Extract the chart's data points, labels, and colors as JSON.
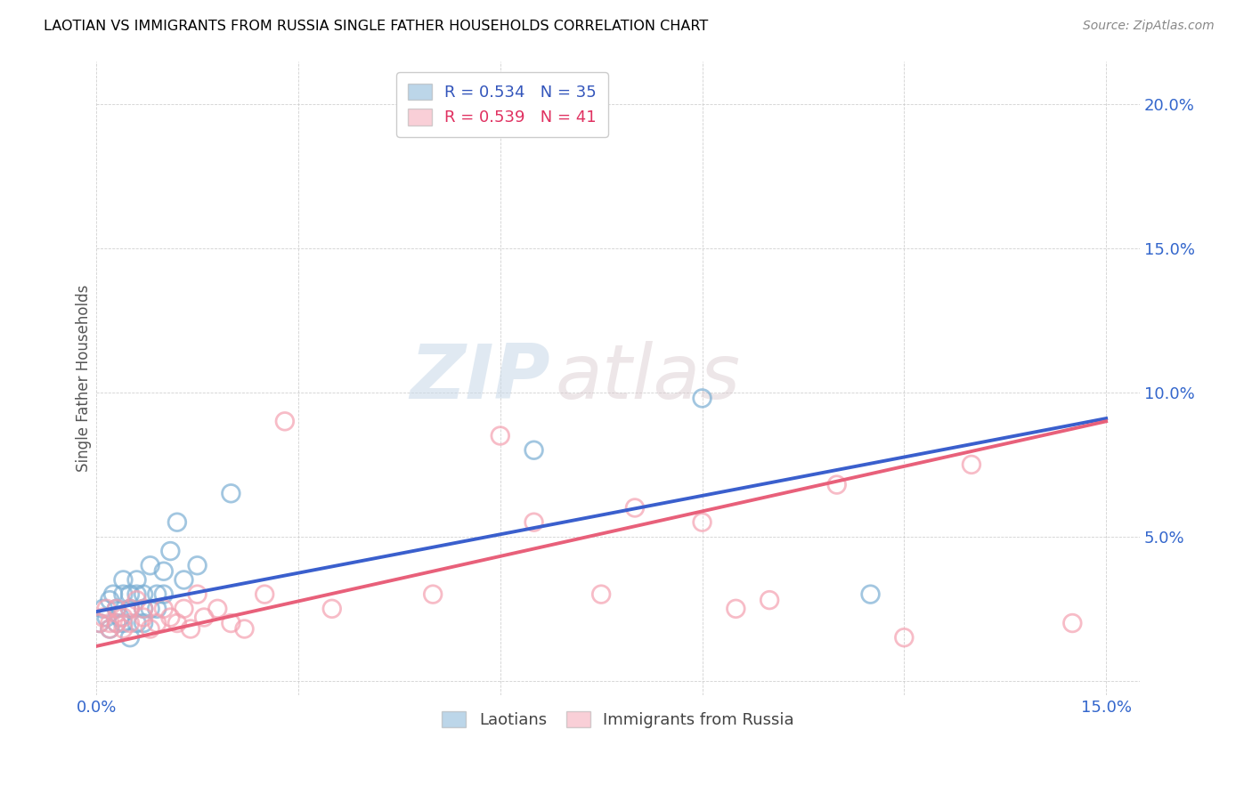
{
  "title": "LAOTIAN VS IMMIGRANTS FROM RUSSIA SINGLE FATHER HOUSEHOLDS CORRELATION CHART",
  "source": "Source: ZipAtlas.com",
  "ylabel": "Single Father Households",
  "xlim": [
    0.0,
    0.155
  ],
  "ylim": [
    -0.005,
    0.215
  ],
  "xticks": [
    0.0,
    0.03,
    0.06,
    0.09,
    0.12,
    0.15
  ],
  "yticks": [
    0.0,
    0.05,
    0.1,
    0.15,
    0.2
  ],
  "legend_R1": "R = 0.534",
  "legend_N1": "N = 35",
  "legend_R2": "R = 0.539",
  "legend_N2": "N = 41",
  "blue_color": "#7BAFD4",
  "pink_color": "#F4A0B0",
  "blue_line_color": "#3A5FCD",
  "pink_line_color": "#E8607A",
  "watermark_zip": "ZIP",
  "watermark_atlas": "atlas",
  "laotian_x": [
    0.0005,
    0.001,
    0.0015,
    0.002,
    0.002,
    0.0025,
    0.003,
    0.003,
    0.0035,
    0.004,
    0.004,
    0.004,
    0.005,
    0.005,
    0.005,
    0.006,
    0.006,
    0.006,
    0.007,
    0.007,
    0.007,
    0.008,
    0.008,
    0.009,
    0.009,
    0.01,
    0.01,
    0.011,
    0.012,
    0.013,
    0.015,
    0.02,
    0.065,
    0.09,
    0.115
  ],
  "laotian_y": [
    0.02,
    0.025,
    0.022,
    0.018,
    0.028,
    0.03,
    0.02,
    0.025,
    0.022,
    0.02,
    0.03,
    0.035,
    0.025,
    0.015,
    0.03,
    0.02,
    0.03,
    0.035,
    0.025,
    0.03,
    0.02,
    0.04,
    0.025,
    0.03,
    0.025,
    0.038,
    0.03,
    0.045,
    0.055,
    0.035,
    0.04,
    0.065,
    0.08,
    0.098,
    0.03
  ],
  "russia_x": [
    0.0005,
    0.001,
    0.0015,
    0.002,
    0.002,
    0.003,
    0.003,
    0.004,
    0.004,
    0.005,
    0.005,
    0.006,
    0.007,
    0.007,
    0.008,
    0.009,
    0.01,
    0.011,
    0.012,
    0.013,
    0.014,
    0.015,
    0.016,
    0.018,
    0.02,
    0.022,
    0.025,
    0.028,
    0.035,
    0.05,
    0.06,
    0.065,
    0.075,
    0.08,
    0.09,
    0.095,
    0.1,
    0.11,
    0.12,
    0.13,
    0.145
  ],
  "russia_y": [
    0.02,
    0.022,
    0.025,
    0.02,
    0.018,
    0.025,
    0.02,
    0.022,
    0.018,
    0.025,
    0.02,
    0.028,
    0.022,
    0.025,
    0.018,
    0.02,
    0.025,
    0.022,
    0.02,
    0.025,
    0.018,
    0.03,
    0.022,
    0.025,
    0.02,
    0.018,
    0.03,
    0.09,
    0.025,
    0.03,
    0.085,
    0.055,
    0.03,
    0.06,
    0.055,
    0.025,
    0.028,
    0.068,
    0.015,
    0.075,
    0.02
  ],
  "blue_line_x0": 0.0,
  "blue_line_y0": 0.024,
  "blue_line_x1": 0.15,
  "blue_line_y1": 0.091,
  "pink_line_x0": 0.0,
  "pink_line_y0": 0.012,
  "pink_line_x1": 0.15,
  "pink_line_y1": 0.09
}
